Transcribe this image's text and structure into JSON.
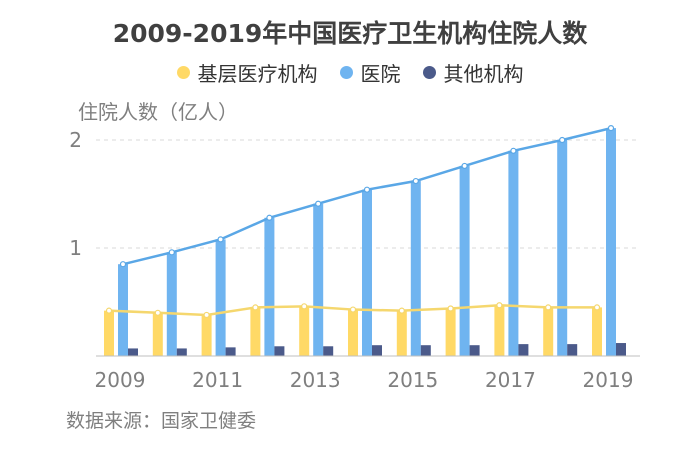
{
  "chart_data": {
    "type": "bar",
    "title": "2009-2019年中国医疗卫生机构住院人数",
    "ylabel": "住院人数（亿人）",
    "source": "数据来源：国家卫健委",
    "categories": [
      "2009",
      "2010",
      "2011",
      "2012",
      "2013",
      "2014",
      "2015",
      "2016",
      "2017",
      "2018",
      "2019"
    ],
    "x_tick_labels": [
      "2009",
      "2011",
      "2013",
      "2015",
      "2017",
      "2019"
    ],
    "y_ticks": [
      "1",
      "2"
    ],
    "ylim": [
      0,
      2.2
    ],
    "grid": true,
    "legend_position": "top",
    "series": [
      {
        "name": "基层医疗机构",
        "color": "#FFD966",
        "values": [
          0.42,
          0.4,
          0.38,
          0.45,
          0.46,
          0.43,
          0.42,
          0.44,
          0.47,
          0.45,
          0.45
        ],
        "line": true
      },
      {
        "name": "医院",
        "color": "#6FB4F0",
        "values": [
          0.85,
          0.96,
          1.08,
          1.28,
          1.41,
          1.54,
          1.62,
          1.76,
          1.9,
          2.0,
          2.11
        ],
        "line": true
      },
      {
        "name": "其他机构",
        "color": "#4B5A8A",
        "values": [
          0.07,
          0.07,
          0.08,
          0.09,
          0.09,
          0.1,
          0.1,
          0.1,
          0.11,
          0.11,
          0.12
        ],
        "line": false
      }
    ]
  }
}
